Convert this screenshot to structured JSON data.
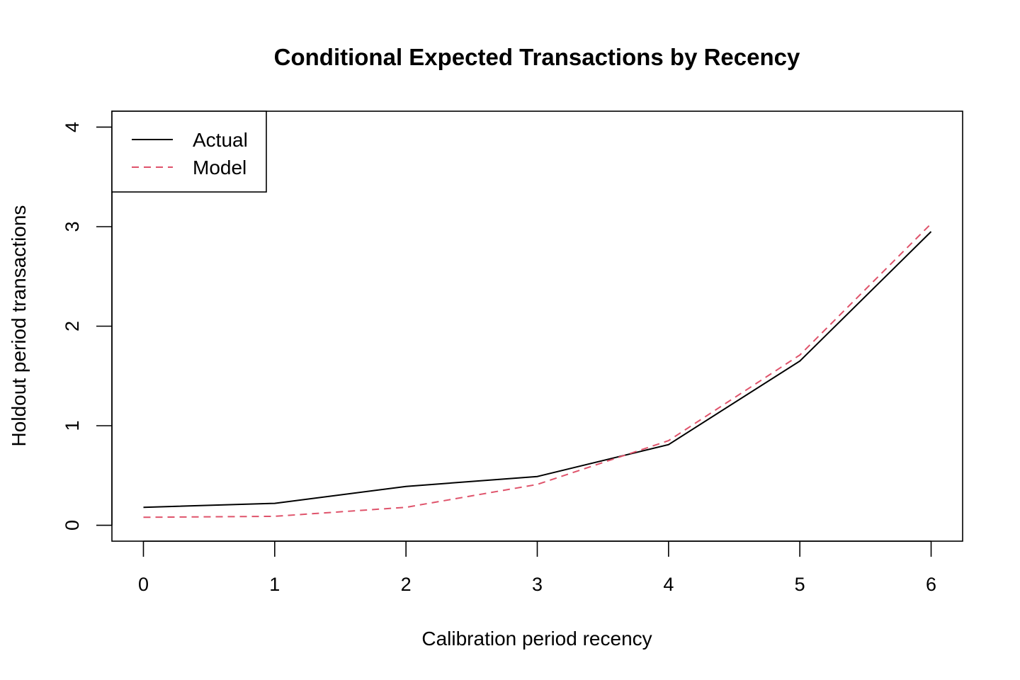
{
  "chart_data": {
    "type": "line",
    "title": "Conditional Expected Transactions by Recency",
    "xlabel": "Calibration period recency",
    "ylabel": "Holdout period transactions",
    "x": [
      0,
      1,
      2,
      3,
      4,
      5,
      6
    ],
    "xlim": [
      -0.24,
      6.24
    ],
    "ylim": [
      -0.16,
      4.16
    ],
    "xticks": [
      "0",
      "1",
      "2",
      "3",
      "4",
      "5",
      "6"
    ],
    "yticks": [
      "0",
      "1",
      "2",
      "3",
      "4"
    ],
    "grid": false,
    "legend_position": "top-left",
    "series": [
      {
        "name": "Actual",
        "color": "#000000",
        "dash": "solid",
        "values": [
          0.18,
          0.22,
          0.39,
          0.49,
          0.81,
          1.65,
          2.95
        ]
      },
      {
        "name": "Model",
        "color": "#DF536B",
        "dash": "dashed",
        "values": [
          0.08,
          0.09,
          0.18,
          0.41,
          0.85,
          1.71,
          3.03
        ]
      }
    ]
  }
}
